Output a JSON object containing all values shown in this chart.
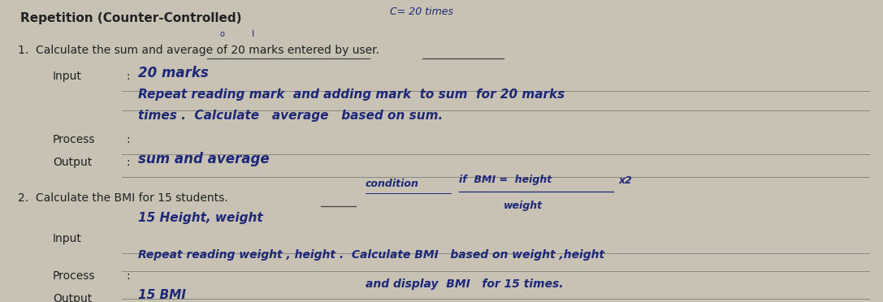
{
  "bg_color": "#c8c2b4",
  "paper_color": "#d8d2c4",
  "title": "Repetition (Counter-Controlled)",
  "subtitle_note": "C= 20 times",
  "q1_header": "1.  Calculate the sum and average of 20 marks entered by user.",
  "q1_input_label": "Input",
  "q1_input_colon": ":",
  "q1_input_val": "20 marks",
  "q1_process_line1": "Repeat reading mark  and adding mark  to sum  for 20 marks",
  "q1_process_line2": "times .  Calculate   average   based on sum.",
  "q1_process_label": "Process",
  "q1_process_colon": ":",
  "q1_output_label": "Output",
  "q1_output_colon": ":",
  "q1_output_val": "sum and average",
  "q2_header": "2.  Calculate the BMI for 15 students.",
  "q2_condition": "condition",
  "q2_fraction_top": "if  BMI =  height",
  "q2_fraction_bot": "weight",
  "q2_x2": "x2",
  "q2_input_label": "Input",
  "q2_input_val": "15 Height, weight",
  "q2_process_label": "Process",
  "q2_process_colon": ":",
  "q2_process_line1": "Repeat reading weight , height .  Calculate BMI   based on weight ,height",
  "q2_process_line2": "and display  BMI   for 15 times.",
  "q2_output_label": "Output",
  "q2_output_val": "15 BMI",
  "hw_color": "#1e2878",
  "print_color": "#222222",
  "line_color": "#888880",
  "underline_color": "#444444"
}
